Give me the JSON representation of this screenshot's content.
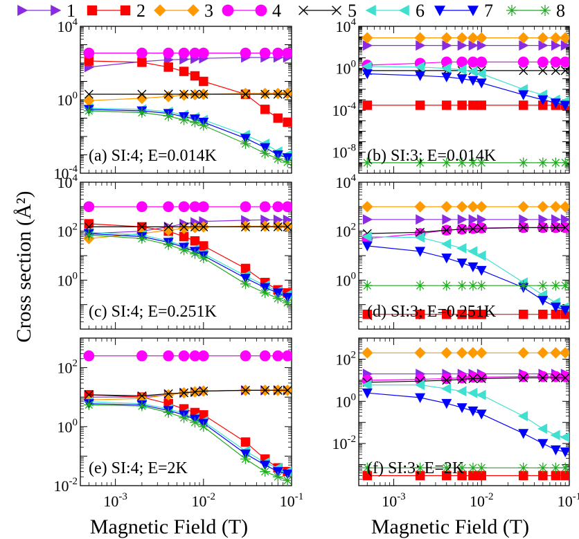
{
  "figure": {
    "ylabel": "Cross section (Å²)",
    "xlabel": "Magnetic Field (T)"
  },
  "legend": [
    {
      "label": "1",
      "color": "#8a2be2",
      "marker": "triangle-right"
    },
    {
      "label": "2",
      "color": "#ff0000",
      "marker": "square"
    },
    {
      "label": "3",
      "color": "#ff9900",
      "marker": "diamond"
    },
    {
      "label": "4",
      "color": "#ff00ff",
      "marker": "circle"
    },
    {
      "label": "5",
      "color": "#000000",
      "marker": "x"
    },
    {
      "label": "6",
      "color": "#40e0d0",
      "marker": "triangle-left"
    },
    {
      "label": "7",
      "color": "#0000ff",
      "marker": "triangle-down"
    },
    {
      "label": "8",
      "color": "#22aa22",
      "marker": "star"
    }
  ],
  "chart_data": [
    {
      "type": "line",
      "panel": "a",
      "annotation": "(a) SI:4; E=0.014K",
      "xscale": "log",
      "yscale": "log",
      "xlim": [
        0.0004,
        0.1
      ],
      "ylim": [
        0.0001,
        10000
      ],
      "yticks": [
        "10-4",
        "100",
        "104"
      ],
      "x": [
        0.0005,
        0.002,
        0.004,
        0.006,
        0.008,
        0.01,
        0.03,
        0.05,
        0.07,
        0.09
      ],
      "series": [
        {
          "name": "1",
          "values": [
            60,
            120,
            150,
            160,
            170,
            180,
            200,
            200,
            200,
            200
          ]
        },
        {
          "name": "2",
          "values": [
            130,
            110,
            60,
            35,
            20,
            10,
            2,
            0.3,
            0.1,
            0.06
          ]
        },
        {
          "name": "3",
          "values": [
            0.9,
            1.2,
            1.5,
            1.8,
            1.9,
            2.0,
            2.2,
            2.2,
            2.2,
            2.2
          ]
        },
        {
          "name": "4",
          "values": [
            350,
            350,
            350,
            350,
            350,
            350,
            350,
            350,
            350,
            350
          ]
        },
        {
          "name": "5",
          "values": [
            2.0,
            2.0,
            2.0,
            2.0,
            2.0,
            2.0,
            2.0,
            2.0,
            2.0,
            2.0
          ]
        },
        {
          "name": "6",
          "values": [
            0.35,
            0.3,
            0.22,
            0.15,
            0.11,
            0.08,
            0.012,
            0.004,
            0.0015,
            0.001
          ]
        },
        {
          "name": "7",
          "values": [
            0.3,
            0.25,
            0.18,
            0.12,
            0.09,
            0.06,
            0.008,
            0.0025,
            0.001,
            0.0007
          ]
        },
        {
          "name": "8",
          "values": [
            0.25,
            0.2,
            0.13,
            0.08,
            0.06,
            0.04,
            0.004,
            0.0012,
            0.0006,
            0.0004
          ]
        }
      ]
    },
    {
      "type": "line",
      "panel": "b",
      "annotation": "(b) SI:3; E=0.014K",
      "xscale": "log",
      "yscale": "log",
      "xlim": [
        0.0004,
        0.1
      ],
      "ylim": [
        1e-10,
        10000
      ],
      "yticks": [
        "10-8",
        "10-4",
        "100",
        "104"
      ],
      "x": [
        0.0005,
        0.002,
        0.004,
        0.006,
        0.008,
        0.01,
        0.03,
        0.05,
        0.07,
        0.09
      ],
      "series": [
        {
          "name": "1",
          "values": [
            150,
            150,
            150,
            150,
            150,
            150,
            150,
            150,
            150,
            150
          ]
        },
        {
          "name": "2",
          "values": [
            0.0003,
            0.0003,
            0.0003,
            0.0003,
            0.0003,
            0.0003,
            0.0003,
            0.0003,
            0.0003,
            0.0003
          ]
        },
        {
          "name": "3",
          "values": [
            800,
            800,
            800,
            800,
            800,
            800,
            800,
            800,
            800,
            800
          ]
        },
        {
          "name": "4",
          "values": [
            2,
            3,
            4,
            4,
            4,
            4,
            4,
            4,
            4,
            4
          ]
        },
        {
          "name": "5",
          "values": [
            0.6,
            0.6,
            0.6,
            0.6,
            0.6,
            0.6,
            0.6,
            0.6,
            0.6,
            0.6
          ]
        },
        {
          "name": "6",
          "values": [
            1.5,
            1.3,
            1.0,
            0.7,
            0.5,
            0.3,
            0.01,
            0.003,
            0.001,
            0.0007
          ]
        },
        {
          "name": "7",
          "values": [
            0.3,
            0.2,
            0.15,
            0.1,
            0.07,
            0.04,
            0.003,
            0.001,
            0.0005,
            0.0003
          ]
        },
        {
          "name": "8",
          "values": [
            1e-09,
            1e-09,
            1e-09,
            1e-09,
            1e-09,
            1e-09,
            1e-09,
            1e-09,
            1e-09,
            1e-09
          ]
        }
      ]
    },
    {
      "type": "line",
      "panel": "c",
      "annotation": "(c) SI:4; E=0.251K",
      "xscale": "log",
      "yscale": "log",
      "xlim": [
        0.0004,
        0.1
      ],
      "ylim": [
        0.01,
        10000
      ],
      "yticks": [
        "100",
        "102",
        "104"
      ],
      "x": [
        0.0005,
        0.002,
        0.004,
        0.006,
        0.008,
        0.01,
        0.03,
        0.05,
        0.07,
        0.09
      ],
      "series": [
        {
          "name": "1",
          "values": [
            80,
            100,
            150,
            200,
            230,
            250,
            280,
            290,
            290,
            290
          ]
        },
        {
          "name": "2",
          "values": [
            200,
            150,
            100,
            60,
            40,
            25,
            3,
            0.8,
            0.4,
            0.3
          ]
        },
        {
          "name": "3",
          "values": [
            50,
            80,
            110,
            130,
            140,
            150,
            160,
            160,
            160,
            160
          ]
        },
        {
          "name": "4",
          "values": [
            1000,
            1000,
            1000,
            1000,
            1000,
            1000,
            1000,
            1000,
            1000,
            1000
          ]
        },
        {
          "name": "5",
          "values": [
            150,
            150,
            150,
            150,
            150,
            150,
            150,
            150,
            150,
            150
          ]
        },
        {
          "name": "6",
          "values": [
            90,
            70,
            40,
            25,
            18,
            12,
            1.5,
            0.6,
            0.35,
            0.25
          ]
        },
        {
          "name": "7",
          "values": [
            80,
            60,
            35,
            22,
            15,
            10,
            1.2,
            0.5,
            0.3,
            0.2
          ]
        },
        {
          "name": "8",
          "values": [
            70,
            50,
            28,
            17,
            12,
            8,
            0.7,
            0.3,
            0.18,
            0.12
          ]
        }
      ]
    },
    {
      "type": "line",
      "panel": "d",
      "annotation": "(d) SI:3; E=0.251K",
      "xscale": "log",
      "yscale": "log",
      "xlim": [
        0.0004,
        0.1
      ],
      "ylim": [
        0.01,
        10000
      ],
      "yticks": [
        "100",
        "102",
        "104"
      ],
      "x": [
        0.0005,
        0.002,
        0.004,
        0.006,
        0.008,
        0.01,
        0.03,
        0.05,
        0.07,
        0.09
      ],
      "series": [
        {
          "name": "1",
          "values": [
            300,
            300,
            300,
            300,
            300,
            300,
            300,
            300,
            300,
            300
          ]
        },
        {
          "name": "2",
          "values": [
            0.04,
            0.04,
            0.04,
            0.04,
            0.04,
            0.04,
            0.04,
            0.04,
            0.04,
            0.04
          ]
        },
        {
          "name": "3",
          "values": [
            1000,
            1000,
            1000,
            1000,
            1000,
            1000,
            1000,
            1000,
            1000,
            1000
          ]
        },
        {
          "name": "4",
          "values": [
            50,
            80,
            110,
            120,
            130,
            135,
            140,
            140,
            140,
            140
          ]
        },
        {
          "name": "5",
          "values": [
            80,
            90,
            110,
            120,
            125,
            130,
            140,
            140,
            140,
            140
          ]
        },
        {
          "name": "6",
          "values": [
            60,
            55,
            30,
            20,
            15,
            10,
            0.8,
            0.25,
            0.12,
            0.08
          ]
        },
        {
          "name": "7",
          "values": [
            25,
            15,
            8,
            5,
            3.5,
            2.5,
            0.5,
            0.15,
            0.08,
            0.06
          ]
        },
        {
          "name": "8",
          "values": [
            0.6,
            0.6,
            0.6,
            0.6,
            0.6,
            0.6,
            0.6,
            0.6,
            0.6,
            0.6
          ]
        }
      ]
    },
    {
      "type": "line",
      "panel": "e",
      "annotation": "(e) SI:4; E=2K",
      "xscale": "log",
      "yscale": "log",
      "xlim": [
        0.0004,
        0.1
      ],
      "ylim": [
        0.01,
        1000
      ],
      "yticks": [
        "10-2",
        "100",
        "102"
      ],
      "x": [
        0.0005,
        0.002,
        0.004,
        0.006,
        0.008,
        0.01,
        0.03,
        0.05,
        0.07,
        0.09
      ],
      "series": [
        {
          "name": "1",
          "values": [
            10,
            10,
            12,
            14,
            15,
            16,
            17,
            17,
            17,
            17
          ]
        },
        {
          "name": "2",
          "values": [
            12,
            10,
            6,
            4,
            3,
            2.5,
            0.3,
            0.08,
            0.04,
            0.03
          ]
        },
        {
          "name": "3",
          "values": [
            8,
            9,
            12,
            14,
            15,
            16,
            17,
            17,
            17,
            17
          ]
        },
        {
          "name": "4",
          "values": [
            250,
            250,
            250,
            250,
            250,
            250,
            250,
            250,
            250,
            250
          ]
        },
        {
          "name": "5",
          "values": [
            12,
            11,
            13,
            14,
            15,
            16,
            17,
            17,
            17,
            17
          ]
        },
        {
          "name": "6",
          "values": [
            7,
            6,
            4,
            2.8,
            2,
            1.5,
            0.15,
            0.06,
            0.04,
            0.03
          ]
        },
        {
          "name": "7",
          "values": [
            6,
            5.5,
            3.5,
            2.5,
            1.8,
            1.3,
            0.12,
            0.05,
            0.03,
            0.025
          ]
        },
        {
          "name": "8",
          "values": [
            5.5,
            5,
            3,
            2,
            1.4,
            1,
            0.08,
            0.03,
            0.02,
            0.015
          ]
        }
      ]
    },
    {
      "type": "line",
      "panel": "f",
      "annotation": "(f) SI:3; E=2K",
      "xscale": "log",
      "yscale": "log",
      "xlim": [
        0.0004,
        0.1
      ],
      "ylim": [
        0.0001,
        1000
      ],
      "yticks": [
        "10-2",
        "100",
        "102"
      ],
      "x": [
        0.0005,
        0.002,
        0.004,
        0.006,
        0.008,
        0.01,
        0.03,
        0.05,
        0.07,
        0.09
      ],
      "series": [
        {
          "name": "1",
          "values": [
            20,
            20,
            20,
            20,
            20,
            20,
            20,
            20,
            20,
            20
          ]
        },
        {
          "name": "2",
          "values": [
            0.0003,
            0.0003,
            0.0003,
            0.0003,
            0.0003,
            0.0003,
            0.0003,
            0.0003,
            0.0003,
            0.0003
          ]
        },
        {
          "name": "3",
          "values": [
            200,
            200,
            200,
            200,
            200,
            200,
            200,
            200,
            200,
            200
          ]
        },
        {
          "name": "4",
          "values": [
            10,
            11,
            12,
            13,
            14,
            14,
            15,
            15,
            15,
            15
          ]
        },
        {
          "name": "5",
          "values": [
            8,
            9,
            10,
            11,
            12,
            12,
            13,
            13,
            13,
            13
          ]
        },
        {
          "name": "6",
          "values": [
            6,
            6,
            4,
            3,
            2.5,
            2,
            0.2,
            0.05,
            0.025,
            0.02
          ]
        },
        {
          "name": "7",
          "values": [
            2.5,
            1.5,
            0.8,
            0.5,
            0.35,
            0.25,
            0.03,
            0.01,
            0.005,
            0.004
          ]
        },
        {
          "name": "8",
          "values": [
            0.0007,
            0.0007,
            0.0007,
            0.0007,
            0.0007,
            0.0007,
            0.0007,
            0.0007,
            0.0007,
            0.0007
          ]
        }
      ]
    }
  ]
}
